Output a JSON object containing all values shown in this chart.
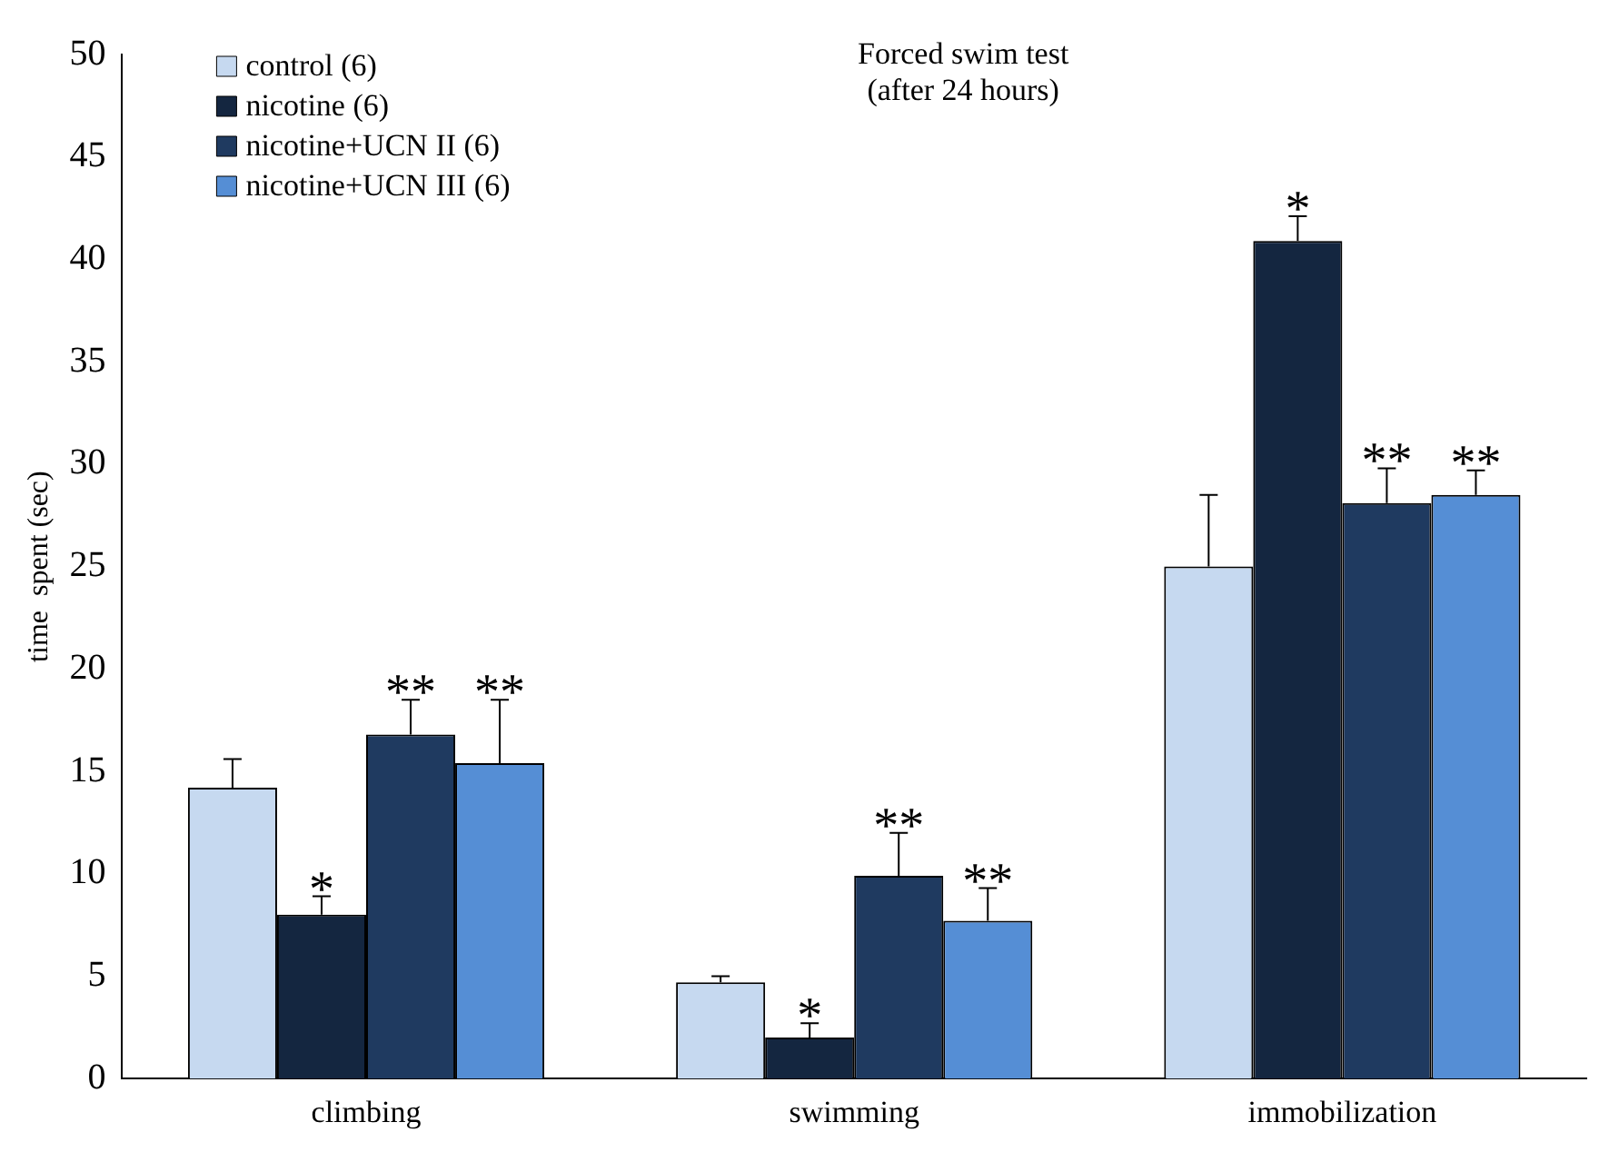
{
  "chart_data": {
    "type": "bar",
    "title": "Forced swim test",
    "subtitle": "(after 24 hours)",
    "ylabel": "time  spent (sec)",
    "categories": [
      "climbing",
      "swimming",
      "immobilization"
    ],
    "series": [
      {
        "name": "control (6)",
        "color": "#c6d9f0",
        "values": [
          14.2,
          4.7,
          25.0
        ],
        "errors": [
          [
            14.2,
            15.6
          ],
          [
            4.7,
            5.0
          ],
          [
            25.0,
            28.5
          ]
        ]
      },
      {
        "name": "nicotine (6)",
        "color": "#142640",
        "values": [
          8.0,
          2.0,
          40.9
        ],
        "errors": [
          [
            8.0,
            8.9
          ],
          [
            2.0,
            2.7
          ],
          [
            40.9,
            42.1
          ]
        ],
        "value_labels": [
          "*",
          "*",
          "*"
        ]
      },
      {
        "name": "nicotine+UCN II (6)",
        "color": "#1f3a60",
        "values": [
          16.8,
          9.9,
          28.1
        ],
        "errors": [
          [
            16.8,
            18.5
          ],
          [
            9.9,
            12.0
          ],
          [
            28.1,
            29.8
          ]
        ],
        "value_labels": [
          "**",
          "**",
          "**"
        ]
      },
      {
        "name": "nicotine+UCN III (6)",
        "color": "#558ed5",
        "values": [
          15.4,
          7.7,
          28.5
        ],
        "errors": [
          [
            15.4,
            18.5
          ],
          [
            7.7,
            9.3
          ],
          [
            28.5,
            29.7
          ]
        ],
        "value_labels": [
          "**",
          "**",
          "**"
        ]
      }
    ],
    "ylim": [
      0,
      50
    ],
    "yticks": [
      0,
      5,
      10,
      15,
      20,
      25,
      30,
      35,
      40,
      45,
      50
    ],
    "grid": false,
    "legend": "top left"
  }
}
